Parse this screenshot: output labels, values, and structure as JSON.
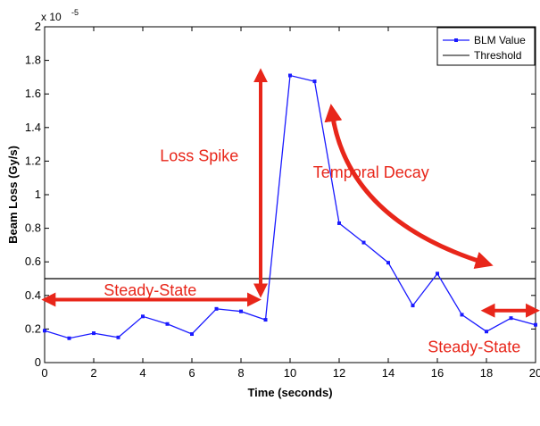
{
  "chart_data": {
    "type": "line",
    "xlabel": "Time (seconds)",
    "ylabel": "Beam Loss (Gy/s)",
    "xlim": [
      0,
      20
    ],
    "ylim": [
      0,
      2
    ],
    "y_exponent_label": "x 10",
    "y_exponent_power": "-5",
    "x_ticks": [
      0,
      2,
      4,
      6,
      8,
      10,
      12,
      14,
      16,
      18,
      20
    ],
    "y_ticks": [
      0,
      0.2,
      0.4,
      0.6,
      0.8,
      1,
      1.2,
      1.4,
      1.6,
      1.8,
      2
    ],
    "grid": false,
    "legend_position": "top-right",
    "series": [
      {
        "name": "BLM Value",
        "color": "#1a1aff",
        "marker": "square",
        "x": [
          0,
          1,
          2,
          3,
          4,
          5,
          6,
          7,
          8,
          9,
          10,
          11,
          12,
          13,
          14,
          15,
          16,
          17,
          18,
          19,
          20
        ],
        "y": [
          0.19,
          0.145,
          0.175,
          0.15,
          0.275,
          0.23,
          0.17,
          0.32,
          0.305,
          0.255,
          1.71,
          1.675,
          0.83,
          0.715,
          0.595,
          0.34,
          0.53,
          0.285,
          0.185,
          0.265,
          0.225
        ]
      },
      {
        "name": "Threshold",
        "color": "#000000",
        "x": [
          0,
          20
        ],
        "y": [
          0.5,
          0.5
        ]
      }
    ],
    "annotations": [
      {
        "id": "loss-spike",
        "text": "Loss Spike",
        "x": 6.3,
        "y": 1.2
      },
      {
        "id": "temporal-decay",
        "text": "Temporal Decay",
        "x": 13.3,
        "y": 1.1
      },
      {
        "id": "steady-state-left",
        "text": "Steady-State",
        "x": 4.3,
        "y": 0.4
      },
      {
        "id": "steady-state-right",
        "text": "Steady-State",
        "x": 17.5,
        "y": 0.06
      }
    ],
    "arrows": [
      {
        "id": "arrow-loss-spike",
        "type": "double",
        "x1": 8.8,
        "y1": 1.72,
        "x2": 8.8,
        "y2": 0.42
      },
      {
        "id": "arrow-steady-left",
        "type": "double",
        "x1": 0.1,
        "y1": 0.375,
        "x2": 8.6,
        "y2": 0.375
      },
      {
        "id": "arrow-steady-right",
        "type": "double",
        "x1": 18.0,
        "y1": 0.31,
        "x2": 19.95,
        "y2": 0.31
      },
      {
        "id": "arrow-temporal-decay",
        "type": "curve",
        "x1": 11.7,
        "y1": 1.5,
        "cx": 12.3,
        "cy": 0.85,
        "x2": 18.0,
        "y2": 0.59
      }
    ],
    "annotation_color": "#e8261a"
  }
}
